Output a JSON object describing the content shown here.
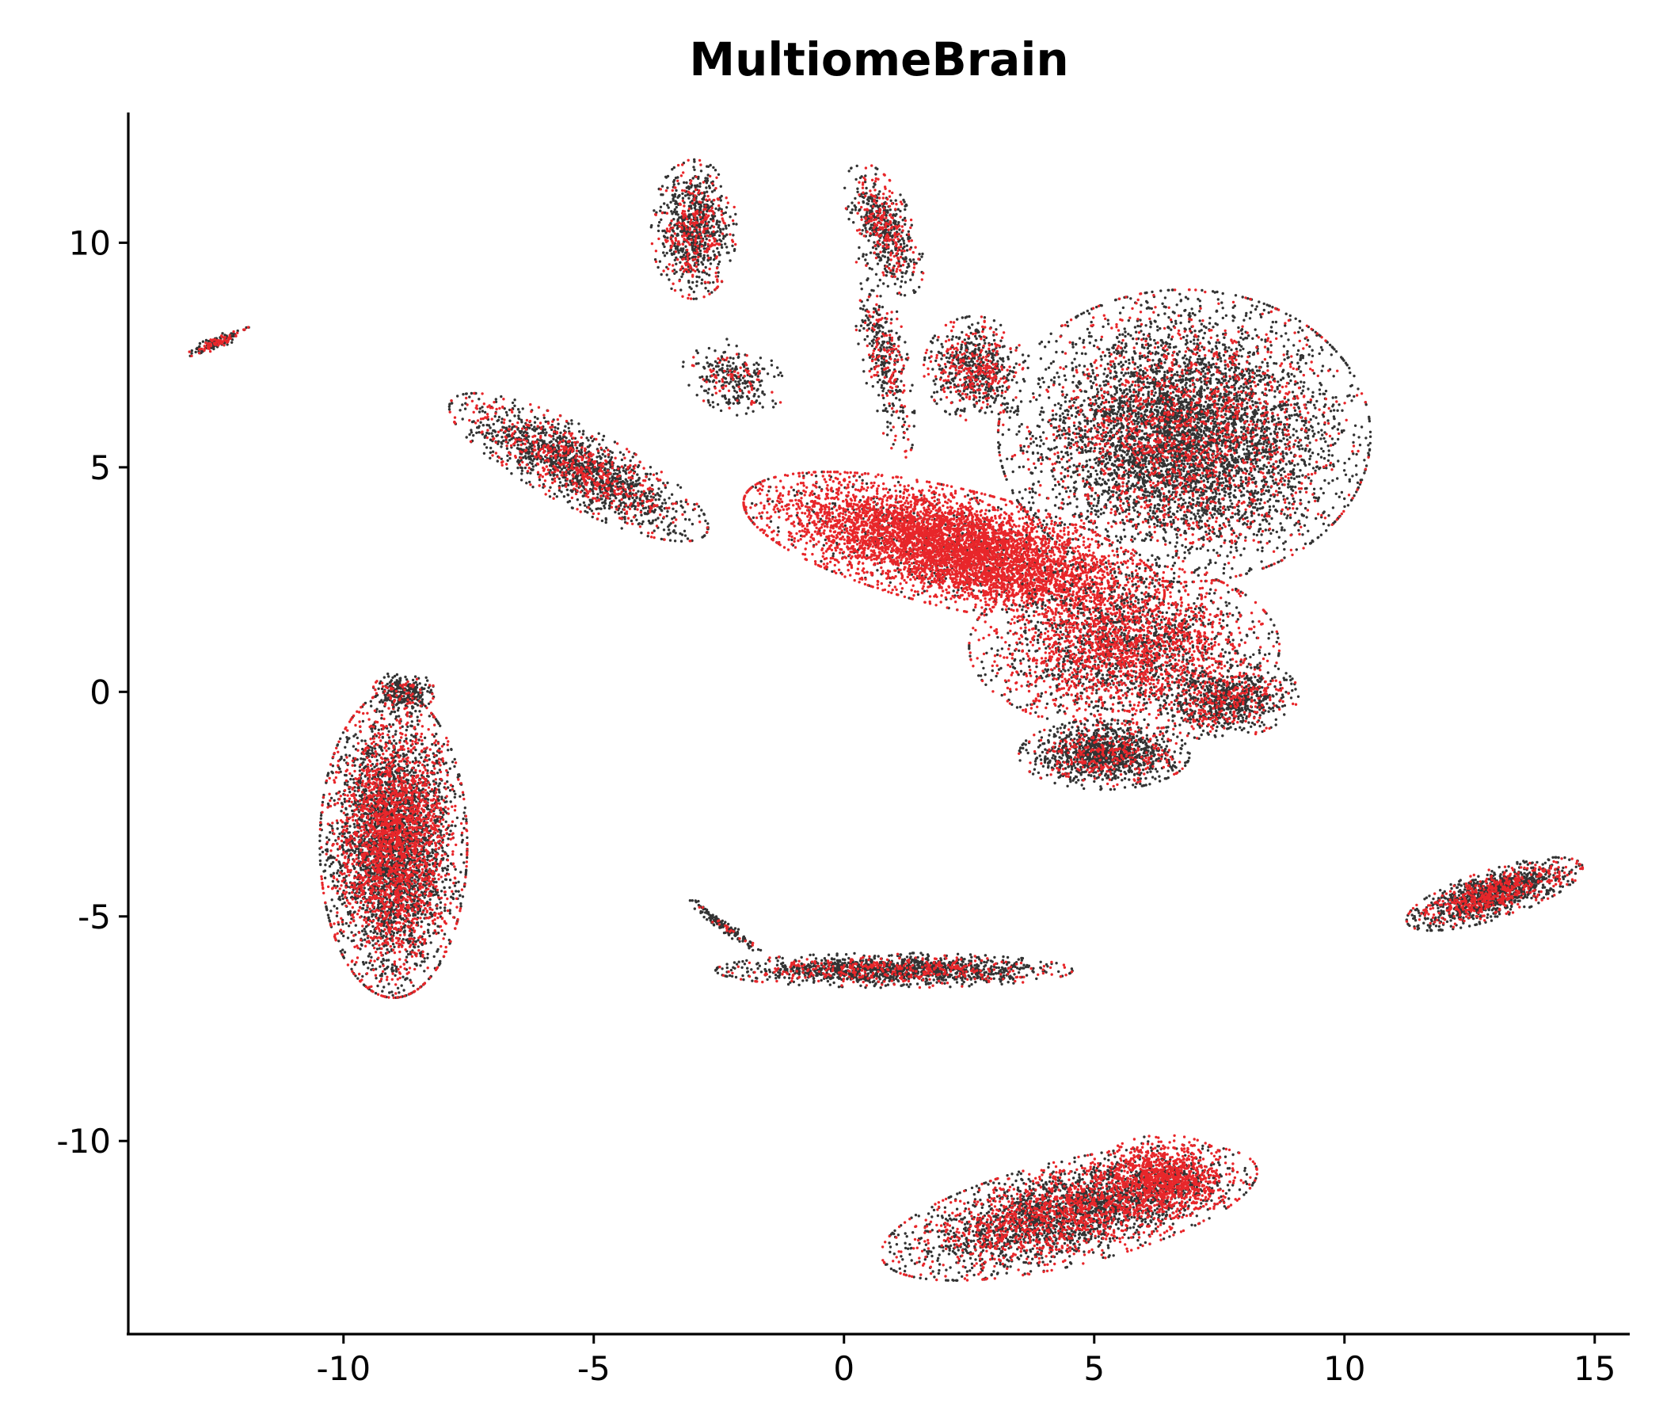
{
  "chart_data": {
    "type": "scatter",
    "title": "MultiomeBrain",
    "xlabel": "",
    "ylabel": "",
    "xlim": [
      -14.3,
      15.7
    ],
    "ylim": [
      -14.3,
      12.9
    ],
    "xticks": [
      -10,
      -5,
      0,
      5,
      10,
      15
    ],
    "xtick_labels": [
      "-10",
      "-5",
      "0",
      "5",
      "10",
      "15"
    ],
    "yticks": [
      -10,
      -5,
      0,
      5,
      10
    ],
    "ytick_labels": [
      "-10",
      "-5",
      "0",
      "5",
      "10"
    ],
    "grid": false,
    "legend": "none",
    "colors": [
      "#333333",
      "#e8262a"
    ],
    "clusters": [
      {
        "cx": -9.0,
        "cy": -3.4,
        "sx": 0.95,
        "sy": 2.2,
        "angle": 0,
        "n": 5200,
        "red_frac": 0.45
      },
      {
        "cx": -5.3,
        "cy": 5.0,
        "sx": 1.9,
        "sy": 0.55,
        "angle": -30,
        "n": 1800,
        "red_frac": 0.3
      },
      {
        "cx": -3.0,
        "cy": 10.3,
        "sx": 0.55,
        "sy": 1.0,
        "angle": 0,
        "n": 900,
        "red_frac": 0.3
      },
      {
        "cx": -2.2,
        "cy": 7.0,
        "sx": 0.7,
        "sy": 0.5,
        "angle": -30,
        "n": 300,
        "red_frac": 0.2
      },
      {
        "cx": 0.8,
        "cy": 10.3,
        "sx": 0.4,
        "sy": 1.0,
        "angle": 20,
        "n": 600,
        "red_frac": 0.35
      },
      {
        "cx": 0.8,
        "cy": 7.5,
        "sx": 0.3,
        "sy": 1.5,
        "angle": 10,
        "n": 400,
        "red_frac": 0.35
      },
      {
        "cx": 2.6,
        "cy": 7.2,
        "sx": 0.65,
        "sy": 0.75,
        "angle": 0,
        "n": 700,
        "red_frac": 0.4
      },
      {
        "cx": 6.8,
        "cy": 5.7,
        "sx": 2.4,
        "sy": 2.1,
        "angle": 0,
        "n": 6500,
        "red_frac": 0.25
      },
      {
        "cx": 2.2,
        "cy": 3.2,
        "sx": 2.8,
        "sy": 0.85,
        "angle": -15,
        "n": 6000,
        "red_frac": 0.88
      },
      {
        "cx": 5.6,
        "cy": 1.0,
        "sx": 2.0,
        "sy": 1.2,
        "angle": 0,
        "n": 3000,
        "red_frac": 0.55
      },
      {
        "cx": 5.2,
        "cy": -1.4,
        "sx": 1.1,
        "sy": 0.5,
        "angle": 0,
        "n": 1400,
        "red_frac": 0.2
      },
      {
        "cx": 7.7,
        "cy": -0.2,
        "sx": 0.9,
        "sy": 0.55,
        "angle": 10,
        "n": 900,
        "red_frac": 0.3
      },
      {
        "cx": 1.0,
        "cy": -6.2,
        "sx": 2.3,
        "sy": 0.25,
        "angle": 0,
        "n": 1600,
        "red_frac": 0.25
      },
      {
        "cx": -2.4,
        "cy": -5.2,
        "sx": 0.65,
        "sy": 0.08,
        "angle": -40,
        "n": 150,
        "red_frac": 0.1
      },
      {
        "cx": 4.5,
        "cy": -11.6,
        "sx": 2.5,
        "sy": 0.75,
        "angle": 15,
        "n": 3600,
        "red_frac": 0.4
      },
      {
        "cx": 6.4,
        "cy": -10.8,
        "sx": 0.9,
        "sy": 0.6,
        "angle": 0,
        "n": 900,
        "red_frac": 0.9
      },
      {
        "cx": 13.0,
        "cy": -4.5,
        "sx": 1.2,
        "sy": 0.35,
        "angle": 20,
        "n": 1500,
        "red_frac": 0.3
      },
      {
        "cx": -12.5,
        "cy": 7.8,
        "sx": 0.45,
        "sy": 0.09,
        "angle": 25,
        "n": 160,
        "red_frac": 0.4
      },
      {
        "cx": -8.8,
        "cy": 0.0,
        "sx": 0.4,
        "sy": 0.3,
        "angle": 0,
        "n": 300,
        "red_frac": 0.2
      }
    ]
  }
}
